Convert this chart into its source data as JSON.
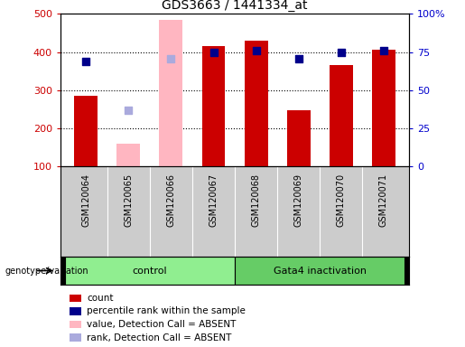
{
  "title": "GDS3663 / 1441334_at",
  "samples": [
    "GSM120064",
    "GSM120065",
    "GSM120066",
    "GSM120067",
    "GSM120068",
    "GSM120069",
    "GSM120070",
    "GSM120071"
  ],
  "count_values": [
    285,
    null,
    null,
    415,
    430,
    248,
    365,
    405
  ],
  "count_absent_values": [
    null,
    160,
    485,
    null,
    null,
    null,
    null,
    null
  ],
  "percentile_values": [
    375,
    null,
    null,
    400,
    403,
    382,
    400,
    403
  ],
  "percentile_absent_values": [
    null,
    248,
    382,
    null,
    null,
    null,
    null,
    null
  ],
  "ylim_left": [
    100,
    500
  ],
  "ylim_right": [
    0,
    100
  ],
  "yticks_left": [
    100,
    200,
    300,
    400,
    500
  ],
  "yticks_right": [
    0,
    25,
    50,
    75,
    100
  ],
  "ytick_labels_right": [
    "0",
    "25",
    "50",
    "75",
    "100%"
  ],
  "left_tick_color": "#cc0000",
  "right_tick_color": "#0000cc",
  "bar_color_count": "#cc0000",
  "bar_color_absent": "#ffb6c1",
  "dot_color_percentile": "#00008b",
  "dot_color_absent": "#aaaadd",
  "group1_label": "control",
  "group2_label": "Gata4 inactivation",
  "group_color": "#90ee90",
  "group_color2": "#66cc66",
  "genotype_label": "genotype/variation",
  "legend_items": [
    {
      "label": "count",
      "color": "#cc0000"
    },
    {
      "label": "percentile rank within the sample",
      "color": "#00008b"
    },
    {
      "label": "value, Detection Call = ABSENT",
      "color": "#ffb6c1"
    },
    {
      "label": "rank, Detection Call = ABSENT",
      "color": "#aaaadd"
    }
  ],
  "bar_width": 0.55,
  "dot_size": 40,
  "gridline_values": [
    200,
    300,
    400
  ],
  "xlabel_area_color": "#cccccc",
  "fig_bg": "#ffffff"
}
